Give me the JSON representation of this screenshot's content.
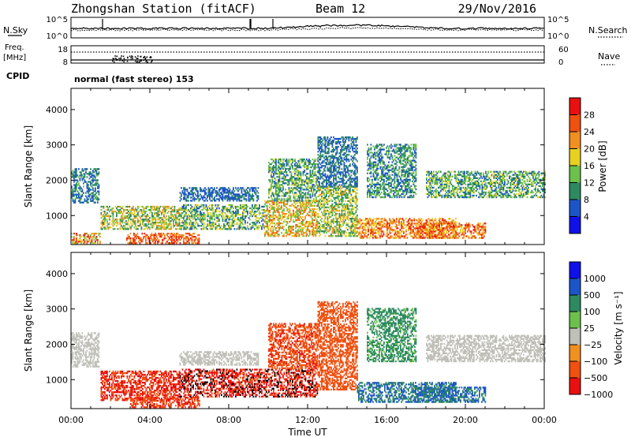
{
  "header": {
    "station": "Zhongshan Station (fitACF)",
    "beam": "Beam 12",
    "date": "29/Nov/2016"
  },
  "top_labels": {
    "nsky": "N.Sky",
    "nsky_ticks": [
      "10^5",
      "10^0"
    ],
    "nsearch": "N.Search",
    "freq": "Freq.",
    "freq_unit": "[MHz]",
    "freq_ticks": [
      "18",
      "8"
    ],
    "nave": "Nave",
    "nave_ticks": [
      "60",
      "0"
    ],
    "cpid": "CPID",
    "cpid_value": "normal (fast stereo) 153"
  },
  "colors": {
    "power": [
      "#1010e8",
      "#1c55c8",
      "#2d8a60",
      "#6cc04c",
      "#e8d020",
      "#f09020",
      "#f05010",
      "#e81010"
    ],
    "velocity": [
      "#1010e8",
      "#1c55c8",
      "#2d8a60",
      "#6cc04c",
      "#c0c0b8",
      "#f09020",
      "#f05010",
      "#e81010"
    ]
  },
  "chart_data": [
    {
      "type": "heatmap",
      "quantity": "power",
      "ylabel": "Slant Range [km]",
      "yticks": [
        1000,
        2000,
        3000,
        4000
      ],
      "ylim": [
        180,
        4600
      ],
      "xlim": [
        0,
        24
      ],
      "colorbar": {
        "label": "Power [dB]",
        "ticks": [
          "28",
          "24",
          "20",
          "16",
          "12",
          "8",
          "4"
        ],
        "bins": [
          0,
          4,
          8,
          12,
          16,
          20,
          24,
          28,
          32
        ]
      },
      "echo_regions": [
        {
          "t0": 0.0,
          "t1": 1.4,
          "r0": 1350,
          "r1": 2300,
          "v0": 4,
          "v1": 13
        },
        {
          "t0": 0.0,
          "t1": 1.5,
          "r0": 200,
          "r1": 500,
          "v0": 12,
          "v1": 30
        },
        {
          "t0": 1.5,
          "t1": 5.5,
          "r0": 600,
          "r1": 1250,
          "v0": 8,
          "v1": 24
        },
        {
          "t0": 2.8,
          "t1": 6.5,
          "r0": 200,
          "r1": 500,
          "v0": 20,
          "v1": 30
        },
        {
          "t0": 5.5,
          "t1": 9.8,
          "r0": 600,
          "r1": 1300,
          "v0": 6,
          "v1": 20
        },
        {
          "t0": 5.5,
          "t1": 9.5,
          "r0": 1400,
          "r1": 1800,
          "v0": 4,
          "v1": 10
        },
        {
          "t0": 9.8,
          "t1": 12.5,
          "r0": 400,
          "r1": 1400,
          "v0": 12,
          "v1": 26
        },
        {
          "t0": 10.0,
          "t1": 12.5,
          "r0": 1400,
          "r1": 2600,
          "v0": 6,
          "v1": 18
        },
        {
          "t0": 12.5,
          "t1": 14.5,
          "r0": 400,
          "r1": 1800,
          "v0": 8,
          "v1": 22
        },
        {
          "t0": 12.5,
          "t1": 14.5,
          "r0": 1800,
          "r1": 3200,
          "v0": 4,
          "v1": 12
        },
        {
          "t0": 14.5,
          "t1": 19.5,
          "r0": 350,
          "r1": 900,
          "v0": 16,
          "v1": 30
        },
        {
          "t0": 15.0,
          "t1": 17.5,
          "r0": 1500,
          "r1": 3000,
          "v0": 4,
          "v1": 16
        },
        {
          "t0": 17.5,
          "t1": 21.0,
          "r0": 350,
          "r1": 800,
          "v0": 18,
          "v1": 30
        },
        {
          "t0": 18.0,
          "t1": 24.0,
          "r0": 1500,
          "r1": 2250,
          "v0": 6,
          "v1": 18
        }
      ]
    },
    {
      "type": "heatmap",
      "quantity": "velocity",
      "ylabel": "Slant Range [km]",
      "yticks": [
        1000,
        2000,
        3000,
        4000
      ],
      "ylim": [
        180,
        4600
      ],
      "xlim": [
        0,
        24
      ],
      "xlabel": "Time UT",
      "xticks": [
        "00:00",
        "04:00",
        "08:00",
        "12:00",
        "16:00",
        "20:00",
        "00:00"
      ],
      "colorbar": {
        "label": "Velocity [m s⁻¹]",
        "ticks": [
          "1000",
          "500",
          "100",
          "25",
          "−25",
          "−100",
          "−500",
          "−1000"
        ],
        "bins": [
          2000,
          1000,
          500,
          100,
          25,
          -25,
          -100,
          -500,
          -1000,
          -2000
        ]
      },
      "echo_regions": [
        {
          "t0": 0.0,
          "t1": 1.4,
          "r0": 1350,
          "r1": 2300,
          "v0": -20,
          "v1": 20
        },
        {
          "t0": 1.5,
          "t1": 5.5,
          "r0": 400,
          "r1": 1250,
          "v0": -900,
          "v1": -150
        },
        {
          "t0": 3.0,
          "t1": 6.5,
          "r0": 200,
          "r1": 500,
          "v0": -700,
          "v1": -200
        },
        {
          "t0": 5.5,
          "t1": 12.5,
          "r0": 500,
          "r1": 1300,
          "v0": -1200,
          "v1": -300
        },
        {
          "t0": 5.5,
          "t1": 9.5,
          "r0": 1400,
          "r1": 1800,
          "v0": -20,
          "v1": 20
        },
        {
          "t0": 10.0,
          "t1": 12.5,
          "r0": 1300,
          "r1": 2600,
          "v0": -600,
          "v1": -100
        },
        {
          "t0": 12.5,
          "t1": 14.5,
          "r0": 700,
          "r1": 3200,
          "v0": -500,
          "v1": -100
        },
        {
          "t0": 14.5,
          "t1": 19.5,
          "r0": 350,
          "r1": 900,
          "v0": 100,
          "v1": 900
        },
        {
          "t0": 15.0,
          "t1": 17.5,
          "r0": 1500,
          "r1": 3000,
          "v0": 30,
          "v1": 400
        },
        {
          "t0": 17.5,
          "t1": 21.0,
          "r0": 350,
          "r1": 800,
          "v0": 150,
          "v1": 800
        },
        {
          "t0": 18.0,
          "t1": 24.0,
          "r0": 1500,
          "r1": 2250,
          "v0": -20,
          "v1": 20
        }
      ]
    }
  ]
}
